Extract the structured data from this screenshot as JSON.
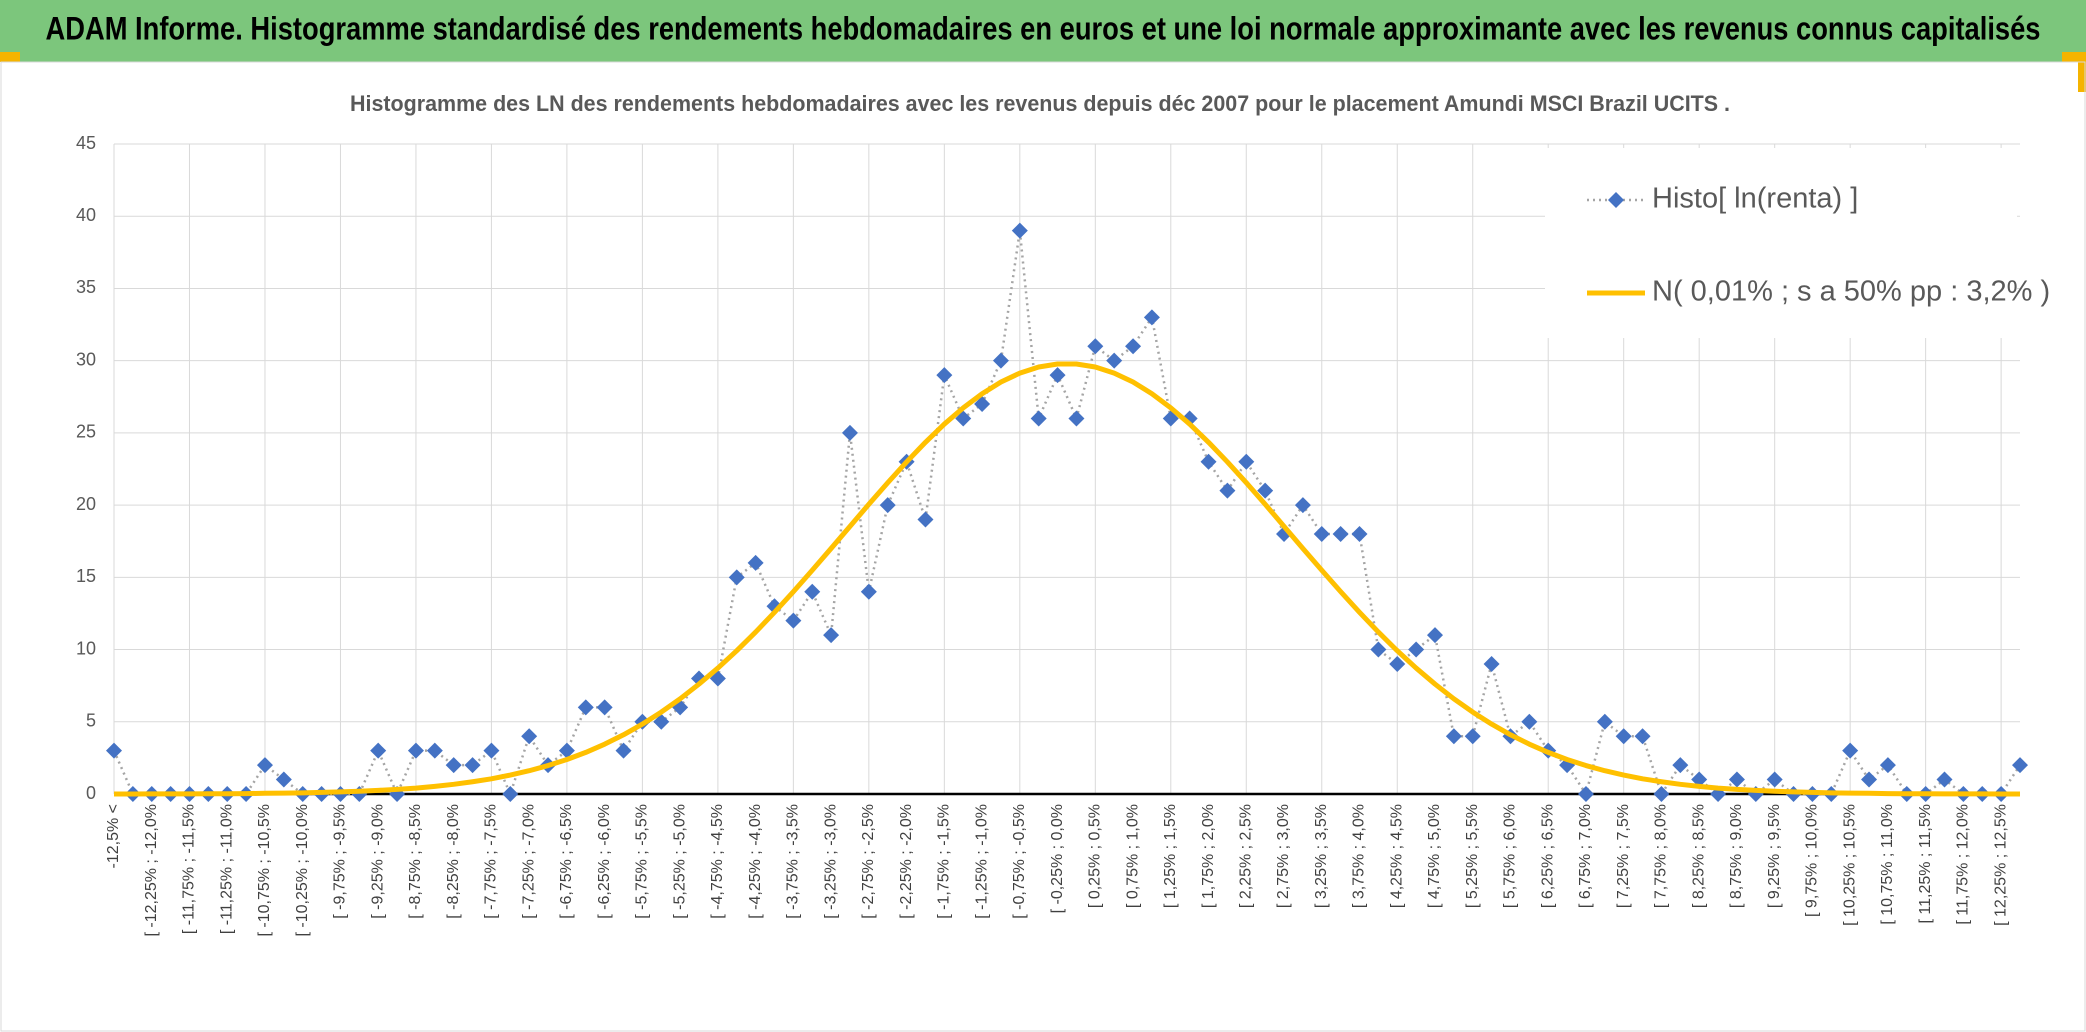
{
  "header": {
    "title": "ADAM Informe. Histogramme standardisé des rendements hebdomadaires en euros et une loi normale approximante avec les revenus connus capitalisés"
  },
  "chart_data": {
    "type": "line",
    "title": "Histogramme des LN des rendements hebdomadaires avec les revenus depuis déc 2007 pour le placement Amundi MSCI Brazil UCITS .",
    "categories": [
      "-12,5% <",
      null,
      "[ -12,25% ; -12,0%",
      null,
      "[ -11,75% ; -11,5%",
      null,
      "[ -11,25% ; -11,0%",
      null,
      "[ -10,75% ; -10,5%",
      null,
      "[ -10,25% ; -10,0%",
      null,
      "[ -9,75% ; -9,5%",
      null,
      "[ -9,25% ; -9,0%",
      null,
      "[ -8,75% ; -8,5%",
      null,
      "[ -8,25% ; -8,0%",
      null,
      "[ -7,75% ; -7,5%",
      null,
      "[ -7,25% ; -7,0%",
      null,
      "[ -6,75% ; -6,5%",
      null,
      "[ -6,25% ; -6,0%",
      null,
      "[ -5,75% ; -5,5%",
      null,
      "[ -5,25% ; -5,0%",
      null,
      "[ -4,75% ; -4,5%",
      null,
      "[ -4,25% ; -4,0%",
      null,
      "[ -3,75% ; -3,5%",
      null,
      "[ -3,25% ; -3,0%",
      null,
      "[ -2,75% ; -2,5%",
      null,
      "[ -2,25% ; -2,0%",
      null,
      "[ -1,75% ; -1,5%",
      null,
      "[ -1,25% ; -1,0%",
      null,
      "[ -0,75% ; -0,5%",
      null,
      "[ -0,25% ; 0,0%",
      null,
      "[ 0,25% ; 0,5%",
      null,
      "[ 0,75% ; 1,0%",
      null,
      "[ 1,25% ; 1,5%",
      null,
      "[ 1,75% ; 2,0%",
      null,
      "[ 2,25% ; 2,5%",
      null,
      "[ 2,75% ; 3,0%",
      null,
      "[ 3,25% ; 3,5%",
      null,
      "[ 3,75% ; 4,0%",
      null,
      "[ 4,25% ; 4,5%",
      null,
      "[ 4,75% ; 5,0%",
      null,
      "[ 5,25% ; 5,5%",
      null,
      "[ 5,75% ; 6,0%",
      null,
      "[ 6,25% ; 6,5%",
      null,
      "[ 6,75% ; 7,0%",
      null,
      "[ 7,25% ; 7,5%",
      null,
      "[ 7,75% ; 8,0%",
      null,
      "[ 8,25% ; 8,5%",
      null,
      "[ 8,75% ; 9,0%",
      null,
      "[ 9,25% ; 9,5%",
      null,
      "[ 9,75% ; 10,0%",
      null,
      "[ 10,25% ; 10,5%",
      null,
      "[ 10,75% ; 11,0%",
      null,
      "[ 11,25% ; 11,5%",
      null,
      "[ 11,75% ; 12,0%",
      null,
      "[ 12,25% ; 12,5%",
      null
    ],
    "series": [
      {
        "name": "Histo[ ln(renta) ]",
        "color": "#4472c4",
        "line_color": "#a5a5a5",
        "line_style": "dotted",
        "marker": "diamond",
        "values": [
          3,
          0,
          0,
          0,
          0,
          0,
          0,
          0,
          2,
          1,
          0,
          0,
          0,
          0,
          3,
          0,
          3,
          3,
          2,
          2,
          3,
          0,
          4,
          2,
          3,
          6,
          6,
          3,
          5,
          5,
          6,
          8,
          8,
          15,
          16,
          13,
          12,
          14,
          11,
          25,
          14,
          20,
          23,
          19,
          29,
          26,
          27,
          30,
          39,
          26,
          29,
          26,
          31,
          30,
          31,
          33,
          26,
          26,
          23,
          21,
          23,
          21,
          18,
          20,
          18,
          18,
          18,
          10,
          9,
          10,
          11,
          4,
          4,
          9,
          4,
          5,
          3,
          2,
          0,
          5,
          4,
          4,
          0,
          2,
          1,
          0,
          1,
          0,
          1,
          0,
          0,
          0,
          3,
          1,
          2,
          0,
          0,
          1,
          0,
          0,
          0,
          2
        ]
      },
      {
        "name": "N( 0,01% ; s a 50% pp : 3,2% )",
        "color": "#ffc000",
        "line_style": "solid",
        "marker": "none",
        "values": [
          0,
          0,
          0.01,
          0.01,
          0.01,
          0.02,
          0.02,
          0.03,
          0.05,
          0.06,
          0.08,
          0.11,
          0.15,
          0.19,
          0.25,
          0.32,
          0.41,
          0.53,
          0.67,
          0.85,
          1.05,
          1.31,
          1.61,
          1.97,
          2.39,
          2.88,
          3.45,
          4.1,
          4.84,
          5.67,
          6.59,
          7.61,
          8.72,
          9.92,
          11.21,
          12.58,
          14.01,
          15.49,
          17,
          18.53,
          20.06,
          21.55,
          22.99,
          24.35,
          25.61,
          26.73,
          27.71,
          28.52,
          29.14,
          29.56,
          29.77,
          29.77,
          29.56,
          29.14,
          28.52,
          27.71,
          26.73,
          25.61,
          24.35,
          22.99,
          21.55,
          20.06,
          18.53,
          17,
          15.49,
          14.01,
          12.58,
          11.21,
          9.92,
          8.72,
          7.61,
          6.59,
          5.67,
          4.84,
          4.1,
          3.45,
          2.88,
          2.39,
          1.97,
          1.61,
          1.31,
          1.05,
          0.85,
          0.67,
          0.53,
          0.41,
          0.32,
          0.25,
          0.19,
          0.15,
          0.11,
          0.08,
          0.06,
          0.05,
          0.03,
          0.02,
          0.02,
          0.01,
          0.01,
          0.01,
          0,
          0
        ]
      }
    ],
    "ylim": [
      0,
      45
    ],
    "yticks": [
      0,
      5,
      10,
      15,
      20,
      25,
      30,
      35,
      40,
      45
    ],
    "grid": true,
    "legend": "top-right"
  }
}
